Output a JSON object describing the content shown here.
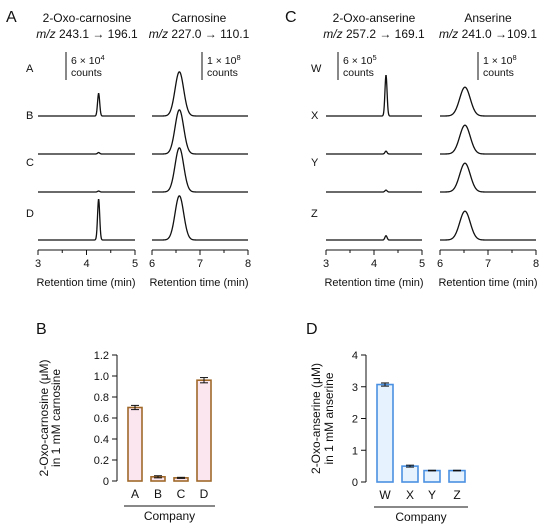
{
  "panels": {
    "A": {
      "letter": "A",
      "left_title": "2-Oxo-carnosine",
      "left_mz_prefix": "m/z",
      "left_transition": "243.1 → 196.1",
      "right_title": "Carnosine",
      "right_mz_prefix": "m/z",
      "right_transition": "227.0 → 110.1",
      "left_scale_text": "6 × 10",
      "left_scale_exp": "4",
      "left_scale_unit": "counts",
      "right_scale_text": "1 × 10",
      "right_scale_exp": "8",
      "right_scale_unit": "counts",
      "xlabel": "Retention time (min)"
    },
    "C": {
      "letter": "C",
      "left_title": "2-Oxo-anserine",
      "left_mz_prefix": "m/z",
      "left_transition": "257.2 → 169.1",
      "right_title": "Anserine",
      "right_mz_prefix": "m/z",
      "right_transition": "241.0 →109.1",
      "left_scale_text": "6 × 10",
      "left_scale_exp": "5",
      "left_scale_unit": "counts",
      "right_scale_text": "1 × 10",
      "right_scale_exp": "8",
      "right_scale_unit": "counts",
      "xlabel": "Retention time (min)"
    },
    "B": {
      "letter": "B"
    },
    "D": {
      "letter": "D"
    }
  },
  "colors": {
    "bar_b_fill": "#fbe6ef",
    "bar_b_stroke": "#a0692a",
    "bar_d_fill": "#e6f2fd",
    "bar_d_stroke": "#4a90e2",
    "axis": "#111111"
  },
  "chart_data": [
    {
      "type": "line",
      "panel": "A",
      "title": "2-Oxo-carnosine",
      "xlim": [
        3,
        5
      ],
      "x_ticks": [
        "3",
        "4",
        "5"
      ],
      "xlabel": "Retention time (min)",
      "rows": [
        {
          "label": "A",
          "peak_rt": 4.25,
          "peak_height": 0.47,
          "peak_width": 0.022
        },
        {
          "label": "B",
          "peak_rt": 4.25,
          "peak_height": 0.03,
          "peak_width": 0.022
        },
        {
          "label": "C",
          "peak_rt": 4.25,
          "peak_height": 0.02,
          "peak_width": 0.022
        },
        {
          "label": "D",
          "peak_rt": 4.25,
          "peak_height": 0.85,
          "peak_width": 0.022
        }
      ]
    },
    {
      "type": "line",
      "panel": "A",
      "title": "Carnosine",
      "xlim": [
        6,
        8
      ],
      "x_ticks": [
        "6",
        "7",
        "8"
      ],
      "xlabel": "Retention time (min)",
      "rows": [
        {
          "label": "A",
          "peak_rt": 6.57,
          "peak_height": 0.92,
          "peak_width": 0.09
        },
        {
          "label": "B",
          "peak_rt": 6.57,
          "peak_height": 0.92,
          "peak_width": 0.09
        },
        {
          "label": "C",
          "peak_rt": 6.57,
          "peak_height": 0.92,
          "peak_width": 0.09
        },
        {
          "label": "D",
          "peak_rt": 6.57,
          "peak_height": 0.92,
          "peak_width": 0.09
        }
      ]
    },
    {
      "type": "line",
      "panel": "C",
      "title": "2-Oxo-anserine",
      "xlim": [
        3,
        5
      ],
      "x_ticks": [
        "3",
        "4",
        "5"
      ],
      "xlabel": "Retention time (min)",
      "rows": [
        {
          "label": "W",
          "peak_rt": 4.25,
          "peak_height": 0.85,
          "peak_width": 0.022
        },
        {
          "label": "X",
          "peak_rt": 4.25,
          "peak_height": 0.06,
          "peak_width": 0.022
        },
        {
          "label": "Y",
          "peak_rt": 4.25,
          "peak_height": 0.04,
          "peak_width": 0.022
        },
        {
          "label": "Z",
          "peak_rt": 4.25,
          "peak_height": 0.09,
          "peak_width": 0.022
        }
      ]
    },
    {
      "type": "line",
      "panel": "C",
      "title": "Anserine",
      "xlim": [
        6,
        8
      ],
      "x_ticks": [
        "6",
        "7",
        "8"
      ],
      "xlabel": "Retention time (min)",
      "rows": [
        {
          "label": "W",
          "peak_rt": 6.52,
          "peak_height": 0.6,
          "peak_width": 0.11
        },
        {
          "label": "X",
          "peak_rt": 6.52,
          "peak_height": 0.6,
          "peak_width": 0.11
        },
        {
          "label": "Y",
          "peak_rt": 6.52,
          "peak_height": 0.6,
          "peak_width": 0.11
        },
        {
          "label": "Z",
          "peak_rt": 6.52,
          "peak_height": 0.6,
          "peak_width": 0.11
        }
      ]
    },
    {
      "type": "bar",
      "panel": "B",
      "categories": [
        "A",
        "B",
        "C",
        "D"
      ],
      "values": [
        0.7,
        0.04,
        0.03,
        0.96
      ],
      "errors": [
        0.02,
        0.01,
        0.005,
        0.025
      ],
      "ylim": [
        0,
        1.2
      ],
      "y_ticks": [
        "0",
        "0.2",
        "0.4",
        "0.6",
        "0.8",
        "1.0",
        "1.2"
      ],
      "ylabel_line1": "2-Oxo-carnosine (μM)",
      "ylabel_line2": "in 1 mM carnosine",
      "xlabel": "Company"
    },
    {
      "type": "bar",
      "panel": "D",
      "categories": [
        "W",
        "X",
        "Y",
        "Z"
      ],
      "values": [
        3.07,
        0.5,
        0.36,
        0.36
      ],
      "errors": [
        0.05,
        0.03,
        0.01,
        0.01
      ],
      "ylim": [
        0,
        4
      ],
      "y_ticks": [
        "0",
        "1",
        "2",
        "3",
        "4"
      ],
      "ylabel_line1": "2-Oxo-anserine (μM)",
      "ylabel_line2": "in 1 mM anserine",
      "xlabel": "Company"
    }
  ]
}
